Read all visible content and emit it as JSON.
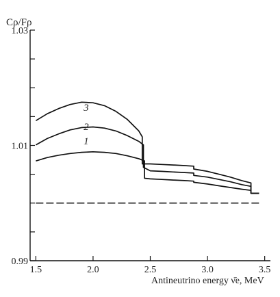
{
  "chart_data": {
    "type": "line",
    "ylabel": "Cρ/Fρ",
    "xlabel": "Antineutrino energy ν̄e, MeV",
    "xlim": [
      1.45,
      3.55
    ],
    "ylim": [
      0.99,
      1.03
    ],
    "xticks": [
      1.5,
      2.0,
      2.5,
      3.0,
      3.5
    ],
    "xtick_labels": [
      "1.5",
      "2.0",
      "2.5",
      "3.0",
      "3.5"
    ],
    "yticks": [
      0.99,
      0.995,
      1.0,
      1.005,
      1.01,
      1.015,
      1.02,
      1.025,
      1.03
    ],
    "ytick_labels": [
      "0.99",
      "",
      "",
      "",
      "1.01",
      "",
      "",
      "",
      "1.03"
    ],
    "grid": false,
    "legend": "none",
    "series": [
      {
        "label_text": "1",
        "label_at": [
          1.94,
          1.0102
        ],
        "x": [
          1.5,
          1.6,
          1.7,
          1.8,
          1.9,
          2.0,
          2.1,
          2.2,
          2.3,
          2.4,
          2.45,
          2.45,
          2.5,
          2.6,
          2.7,
          2.8,
          2.88,
          2.88,
          3.0,
          3.1,
          3.2,
          3.3,
          3.38,
          3.38,
          3.45
        ],
        "y": [
          1.0073,
          1.0079,
          1.0083,
          1.0086,
          1.0088,
          1.0089,
          1.0088,
          1.0086,
          1.0082,
          1.0077,
          1.0073,
          1.0043,
          1.0042,
          1.0041,
          1.004,
          1.0039,
          1.0038,
          1.0036,
          1.0033,
          1.003,
          1.0027,
          1.0024,
          1.0022,
          1.0017,
          1.0017
        ]
      },
      {
        "label_text": "2",
        "label_at": [
          1.94,
          1.0127
        ],
        "x": [
          1.5,
          1.6,
          1.7,
          1.8,
          1.9,
          2.0,
          2.1,
          2.2,
          2.3,
          2.4,
          2.44,
          2.44,
          2.5,
          2.6,
          2.7,
          2.8,
          2.88,
          2.88,
          3.0,
          3.1,
          3.2,
          3.3,
          3.38,
          3.38,
          3.45
        ],
        "y": [
          1.0101,
          1.0112,
          1.012,
          1.0127,
          1.0131,
          1.0132,
          1.013,
          1.0125,
          1.0117,
          1.0107,
          1.0101,
          1.0062,
          1.0056,
          1.0055,
          1.0054,
          1.0053,
          1.0052,
          1.0048,
          1.0045,
          1.0041,
          1.0037,
          1.0032,
          1.0029,
          1.0017,
          1.0017
        ]
      },
      {
        "label_text": "3",
        "label_at": [
          1.94,
          1.016
        ],
        "x": [
          1.5,
          1.6,
          1.7,
          1.8,
          1.9,
          2.0,
          2.1,
          2.2,
          2.3,
          2.4,
          2.43,
          2.43,
          2.5,
          2.6,
          2.7,
          2.8,
          2.88,
          2.88,
          3.0,
          3.1,
          3.2,
          3.3,
          3.38,
          3.38,
          3.45
        ],
        "y": [
          1.0143,
          1.0155,
          1.0164,
          1.0171,
          1.0175,
          1.0174,
          1.0169,
          1.0159,
          1.0145,
          1.0125,
          1.0115,
          1.0068,
          1.0068,
          1.0067,
          1.0066,
          1.0065,
          1.0064,
          1.0059,
          1.0055,
          1.005,
          1.0045,
          1.0039,
          1.0035,
          1.0017,
          1.0017
        ]
      }
    ],
    "reference_line": {
      "y": 1.0,
      "x": [
        1.5,
        3.45
      ],
      "style": "dashed"
    }
  }
}
